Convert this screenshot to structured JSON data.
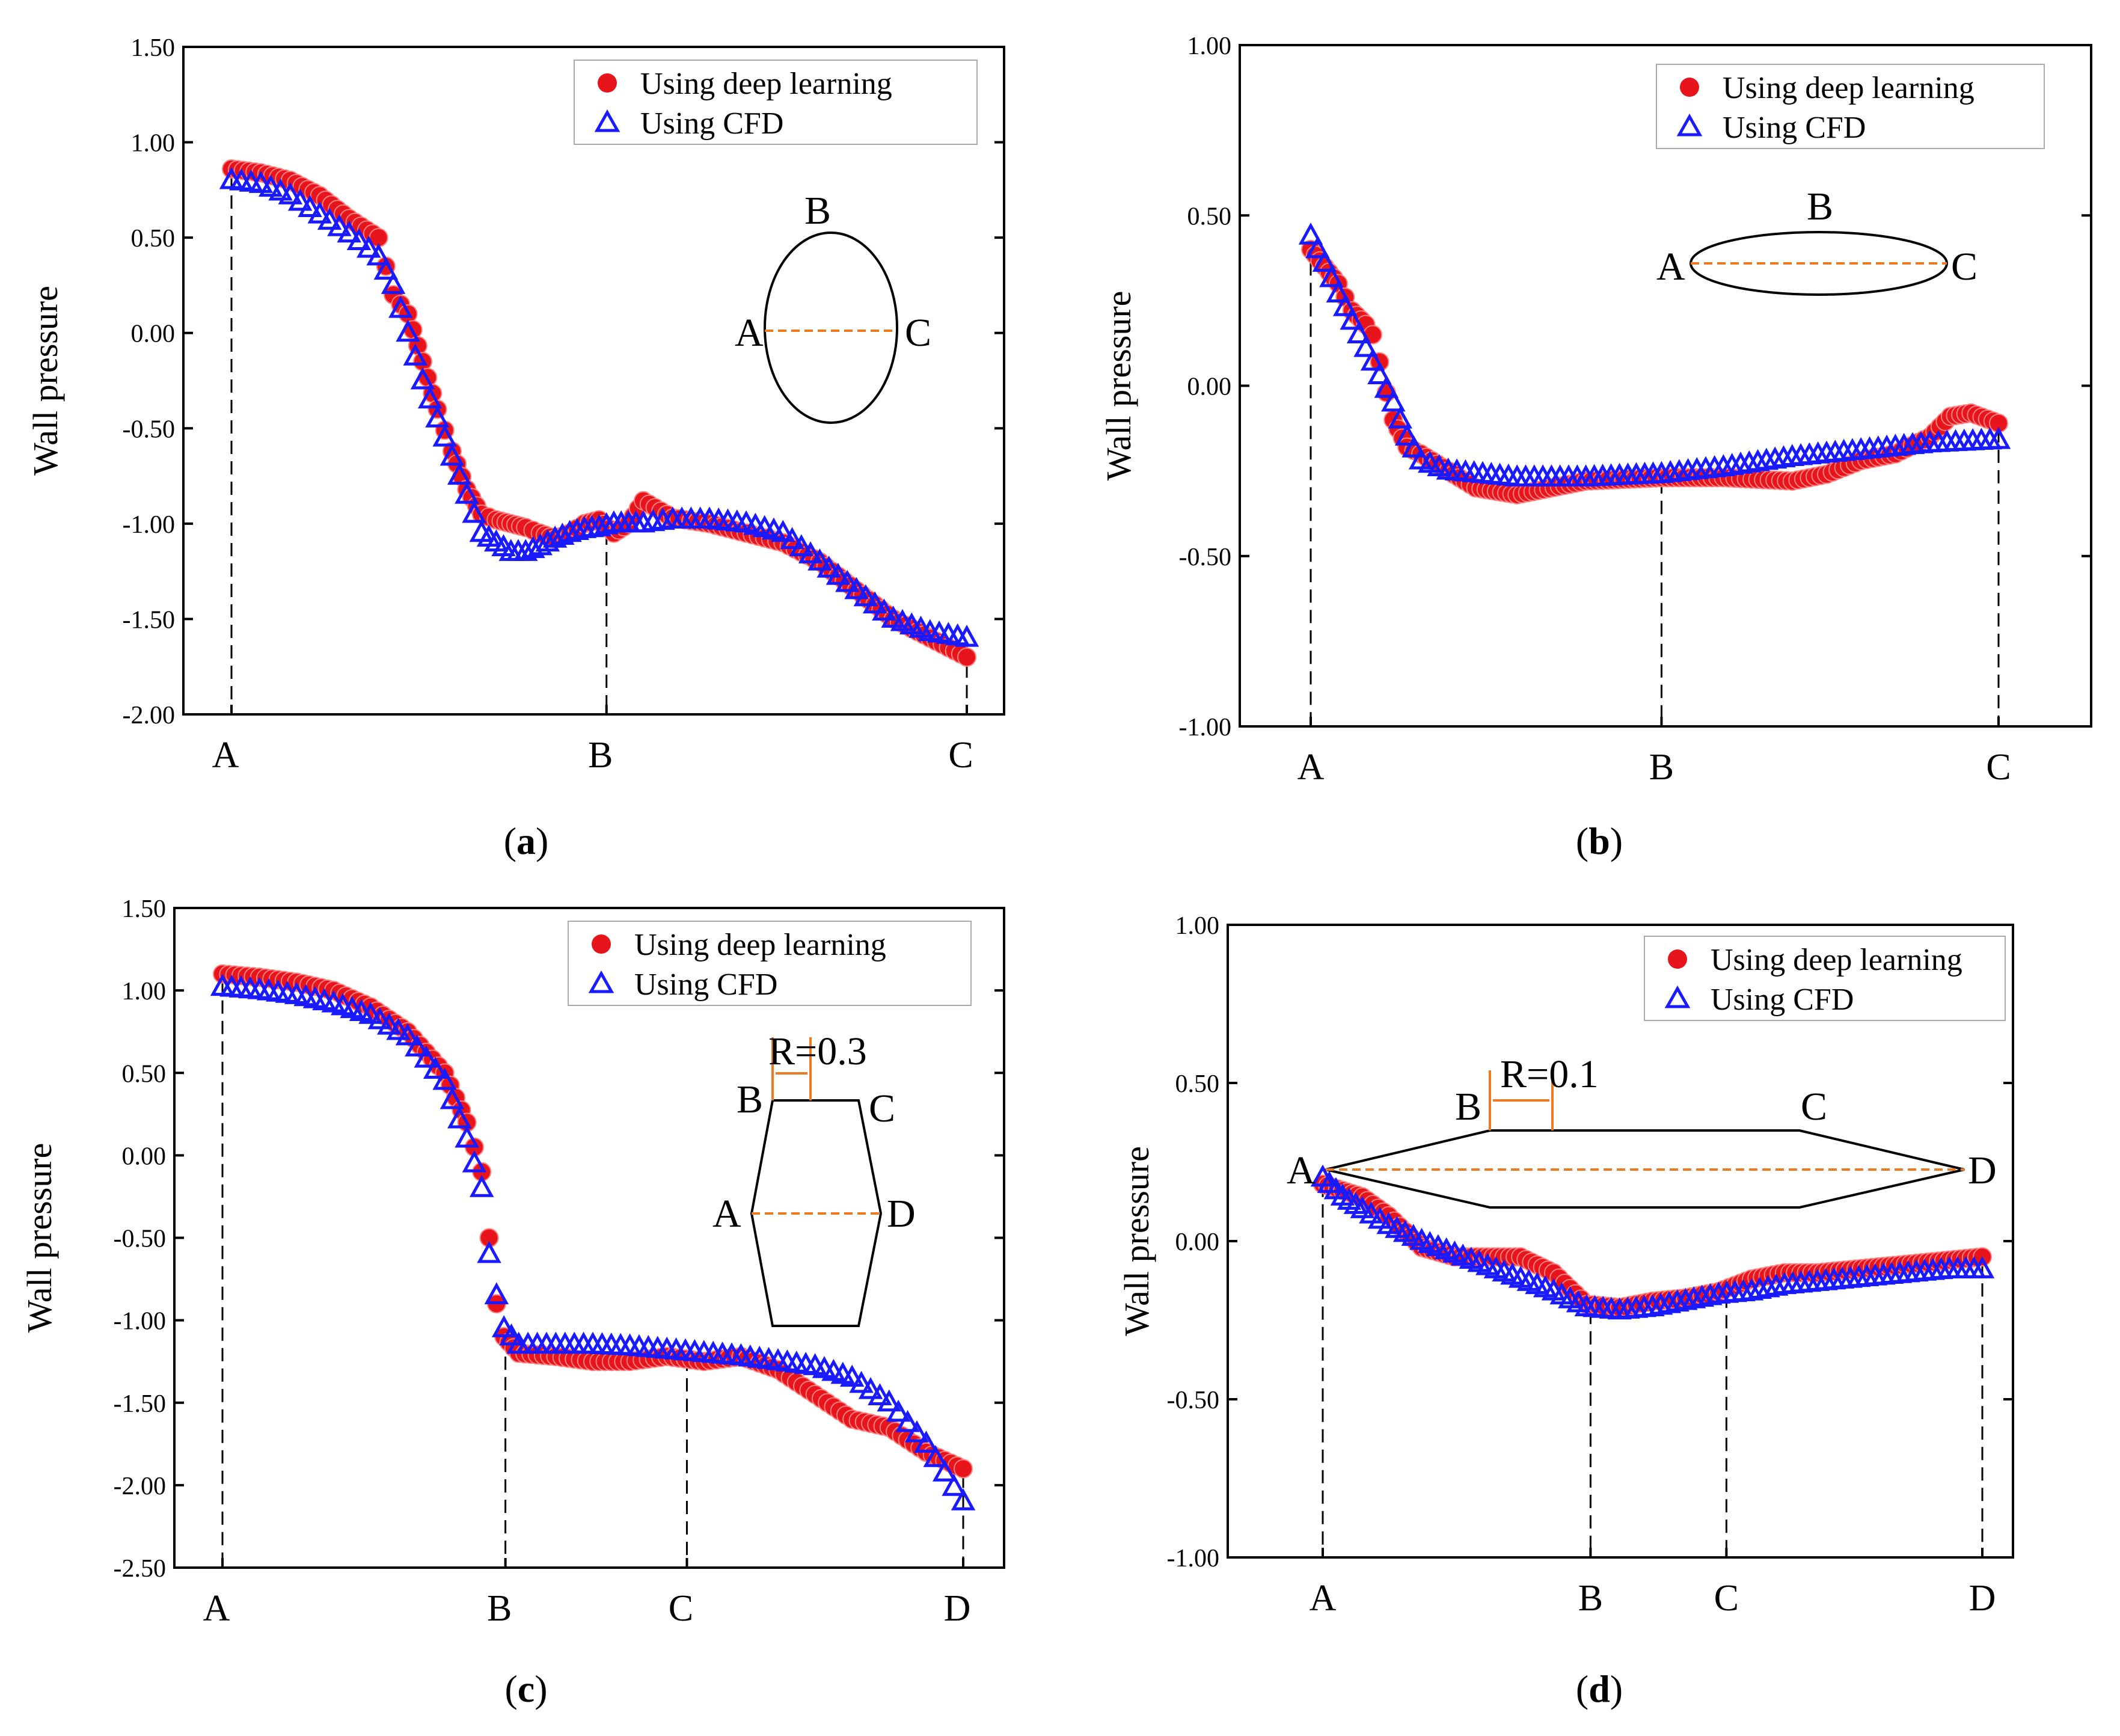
{
  "figure": {
    "captions": [
      "a",
      "b",
      "c",
      "d"
    ]
  },
  "legend": {
    "dl_label": "Using deep learning",
    "cfd_label": "Using CFD"
  },
  "colors": {
    "deep_learning": "#e8141b",
    "cfd": "#1a1aff",
    "shape_axis": "#ee7a22",
    "axes": "#000000"
  },
  "chart_data": [
    {
      "id": "a",
      "type": "scatter",
      "ylabel": "Wall pressure",
      "xlabel": "",
      "ylim": [
        -2.0,
        1.5
      ],
      "yticks": [
        "1.50",
        "1.00",
        "0.50",
        "0.00",
        "-0.50",
        "-1.00",
        "-1.50",
        "-2.00"
      ],
      "x_markers": [
        {
          "label": "A",
          "x": 0
        },
        {
          "label": "B",
          "x": 0.51
        },
        {
          "label": "C",
          "x": 1
        }
      ],
      "inset": {
        "type": "ellipse",
        "labels": [
          "A",
          "B",
          "C"
        ]
      },
      "series": [
        {
          "name": "Using deep learning",
          "x": [
            0,
            0.04,
            0.08,
            0.12,
            0.16,
            0.2,
            0.22,
            0.24,
            0.26,
            0.28,
            0.3,
            0.32,
            0.34,
            0.36,
            0.38,
            0.4,
            0.42,
            0.44,
            0.46,
            0.48,
            0.5,
            0.52,
            0.54,
            0.56,
            0.6,
            0.65,
            0.7,
            0.75,
            0.8,
            0.85,
            0.9,
            0.95,
            1.0
          ],
          "y": [
            0.86,
            0.84,
            0.8,
            0.72,
            0.6,
            0.5,
            0.2,
            0.1,
            -0.15,
            -0.4,
            -0.62,
            -0.82,
            -0.95,
            -0.98,
            -1.0,
            -1.02,
            -1.05,
            -1.08,
            -1.05,
            -1.0,
            -0.98,
            -1.05,
            -1.0,
            -0.88,
            -0.97,
            -1.0,
            -1.05,
            -1.1,
            -1.2,
            -1.35,
            -1.5,
            -1.6,
            -1.7
          ]
        },
        {
          "name": "Using CFD",
          "x": [
            0,
            0.04,
            0.08,
            0.12,
            0.16,
            0.2,
            0.22,
            0.24,
            0.26,
            0.28,
            0.3,
            0.32,
            0.34,
            0.36,
            0.38,
            0.4,
            0.42,
            0.44,
            0.46,
            0.48,
            0.5,
            0.52,
            0.54,
            0.56,
            0.6,
            0.65,
            0.7,
            0.75,
            0.8,
            0.85,
            0.9,
            0.95,
            1.0
          ],
          "y": [
            0.8,
            0.78,
            0.72,
            0.62,
            0.52,
            0.4,
            0.25,
            0.0,
            -0.25,
            -0.45,
            -0.65,
            -0.85,
            -1.05,
            -1.1,
            -1.15,
            -1.15,
            -1.12,
            -1.08,
            -1.05,
            -1.03,
            -1.02,
            -1.0,
            -1.0,
            -1.0,
            -0.98,
            -0.98,
            -1.0,
            -1.05,
            -1.2,
            -1.35,
            -1.5,
            -1.57,
            -1.6
          ]
        }
      ]
    },
    {
      "id": "b",
      "type": "scatter",
      "ylabel": "Wall pressure",
      "xlabel": "",
      "ylim": [
        -1.0,
        1.0
      ],
      "yticks": [
        "1.00",
        "0.50",
        "0.00",
        "-0.50",
        "-1.00"
      ],
      "x_markers": [
        {
          "label": "A",
          "x": 0
        },
        {
          "label": "B",
          "x": 0.51
        },
        {
          "label": "C",
          "x": 1
        }
      ],
      "inset": {
        "type": "flat-ellipse",
        "labels": [
          "A",
          "B",
          "C"
        ]
      },
      "series": [
        {
          "name": "Using deep learning",
          "x": [
            0,
            0.02,
            0.04,
            0.06,
            0.08,
            0.09,
            0.1,
            0.11,
            0.12,
            0.14,
            0.16,
            0.2,
            0.24,
            0.3,
            0.4,
            0.51,
            0.6,
            0.7,
            0.75,
            0.8,
            0.85,
            0.9,
            0.93,
            0.96,
            1.0
          ],
          "y": [
            0.4,
            0.35,
            0.3,
            0.22,
            0.18,
            0.15,
            0.07,
            -0.02,
            -0.1,
            -0.18,
            -0.2,
            -0.25,
            -0.3,
            -0.32,
            -0.28,
            -0.27,
            -0.27,
            -0.28,
            -0.26,
            -0.22,
            -0.2,
            -0.15,
            -0.09,
            -0.08,
            -0.11
          ]
        },
        {
          "name": "Using CFD",
          "x": [
            0,
            0.02,
            0.04,
            0.06,
            0.08,
            0.1,
            0.12,
            0.14,
            0.16,
            0.2,
            0.3,
            0.4,
            0.51,
            0.6,
            0.7,
            0.8,
            0.9,
            1.0
          ],
          "y": [
            0.44,
            0.36,
            0.27,
            0.19,
            0.11,
            0.03,
            -0.05,
            -0.15,
            -0.22,
            -0.25,
            -0.27,
            -0.27,
            -0.26,
            -0.24,
            -0.21,
            -0.19,
            -0.17,
            -0.16
          ]
        }
      ]
    },
    {
      "id": "c",
      "type": "scatter",
      "ylabel": "Wall pressure",
      "xlabel": "",
      "ylim": [
        -2.5,
        1.5
      ],
      "yticks": [
        "1.50",
        "1.00",
        "0.50",
        "0.00",
        "-0.50",
        "-1.00",
        "-1.50",
        "-2.00",
        "-2.50"
      ],
      "x_markers": [
        {
          "label": "A",
          "x": 0
        },
        {
          "label": "B",
          "x": 0.382
        },
        {
          "label": "C",
          "x": 0.627
        },
        {
          "label": "D",
          "x": 1
        }
      ],
      "inset": {
        "type": "hexagon",
        "labels": [
          "A",
          "B",
          "C",
          "D"
        ],
        "annotation": "R=0.3"
      },
      "series": [
        {
          "name": "Using deep learning",
          "x": [
            0,
            0.05,
            0.1,
            0.15,
            0.2,
            0.25,
            0.3,
            0.33,
            0.35,
            0.36,
            0.37,
            0.38,
            0.4,
            0.45,
            0.5,
            0.55,
            0.6,
            0.65,
            0.7,
            0.75,
            0.8,
            0.85,
            0.9,
            0.95,
            1.0
          ],
          "y": [
            1.1,
            1.08,
            1.05,
            1.0,
            0.9,
            0.75,
            0.5,
            0.2,
            -0.1,
            -0.5,
            -0.9,
            -1.1,
            -1.2,
            -1.22,
            -1.25,
            -1.25,
            -1.22,
            -1.25,
            -1.22,
            -1.3,
            -1.45,
            -1.6,
            -1.65,
            -1.8,
            -1.9
          ]
        },
        {
          "name": "Using CFD",
          "x": [
            0,
            0.05,
            0.1,
            0.15,
            0.2,
            0.25,
            0.3,
            0.33,
            0.35,
            0.36,
            0.37,
            0.38,
            0.4,
            0.45,
            0.5,
            0.55,
            0.6,
            0.65,
            0.7,
            0.75,
            0.8,
            0.85,
            0.9,
            0.95,
            1.0
          ],
          "y": [
            1.02,
            1.0,
            0.97,
            0.92,
            0.85,
            0.72,
            0.45,
            0.1,
            -0.2,
            -0.6,
            -0.85,
            -1.05,
            -1.15,
            -1.15,
            -1.15,
            -1.16,
            -1.18,
            -1.2,
            -1.22,
            -1.25,
            -1.28,
            -1.35,
            -1.5,
            -1.75,
            -2.1
          ]
        }
      ]
    },
    {
      "id": "d",
      "type": "scatter",
      "ylabel": "Wall pressure",
      "xlabel": "",
      "ylim": [
        -1.0,
        1.0
      ],
      "yticks": [
        "1.00",
        "0.50",
        "0.00",
        "-0.50",
        "-1.00"
      ],
      "x_markers": [
        {
          "label": "A",
          "x": 0
        },
        {
          "label": "B",
          "x": 0.406
        },
        {
          "label": "C",
          "x": 0.612
        },
        {
          "label": "D",
          "x": 1
        }
      ],
      "inset": {
        "type": "diamond",
        "labels": [
          "A",
          "B",
          "C",
          "D"
        ],
        "annotation": "R=0.1"
      },
      "series": [
        {
          "name": "Using deep learning",
          "x": [
            0,
            0.03,
            0.06,
            0.1,
            0.15,
            0.2,
            0.25,
            0.3,
            0.35,
            0.4,
            0.45,
            0.5,
            0.55,
            0.6,
            0.65,
            0.7,
            0.75,
            0.8,
            0.85,
            0.9,
            0.95,
            1.0
          ],
          "y": [
            0.18,
            0.16,
            0.14,
            0.08,
            -0.02,
            -0.05,
            -0.05,
            -0.05,
            -0.1,
            -0.2,
            -0.21,
            -0.19,
            -0.18,
            -0.16,
            -0.12,
            -0.1,
            -0.1,
            -0.09,
            -0.08,
            -0.07,
            -0.06,
            -0.05
          ]
        },
        {
          "name": "Using CFD",
          "x": [
            0,
            0.03,
            0.06,
            0.1,
            0.15,
            0.2,
            0.25,
            0.3,
            0.35,
            0.4,
            0.45,
            0.5,
            0.55,
            0.6,
            0.65,
            0.7,
            0.75,
            0.8,
            0.85,
            0.9,
            0.95,
            1.0
          ],
          "y": [
            0.2,
            0.14,
            0.1,
            0.05,
            0.0,
            -0.04,
            -0.08,
            -0.12,
            -0.16,
            -0.21,
            -0.22,
            -0.21,
            -0.19,
            -0.17,
            -0.16,
            -0.14,
            -0.13,
            -0.12,
            -0.11,
            -0.1,
            -0.09,
            -0.09
          ]
        }
      ]
    }
  ]
}
